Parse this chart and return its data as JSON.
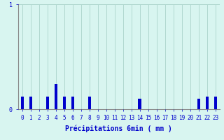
{
  "hours": [
    0,
    1,
    2,
    3,
    4,
    5,
    6,
    7,
    8,
    9,
    10,
    11,
    12,
    13,
    14,
    15,
    16,
    17,
    18,
    19,
    20,
    21,
    22,
    23
  ],
  "values": [
    0.12,
    0.12,
    0.0,
    0.12,
    0.24,
    0.12,
    0.12,
    0.0,
    0.12,
    0.0,
    0.0,
    0.0,
    0.0,
    0.0,
    0.1,
    0.0,
    0.0,
    0.0,
    0.0,
    0.0,
    0.0,
    0.1,
    0.12,
    0.12
  ],
  "bar_color": "#0000cc",
  "background_color": "#d8f5f0",
  "grid_color": "#b0d8d0",
  "axis_color": "#888888",
  "text_color": "#0000cc",
  "xlabel": "Précipitations 6min ( mm )",
  "ylim": [
    0,
    1.0
  ],
  "xlim": [
    -0.5,
    23.5
  ],
  "yticks": [
    0,
    1
  ],
  "xticks": [
    0,
    1,
    2,
    3,
    4,
    5,
    6,
    7,
    8,
    9,
    10,
    11,
    12,
    13,
    14,
    15,
    16,
    17,
    18,
    19,
    20,
    21,
    22,
    23
  ],
  "bar_width": 0.35,
  "label_fontsize": 7,
  "tick_fontsize": 5.5
}
